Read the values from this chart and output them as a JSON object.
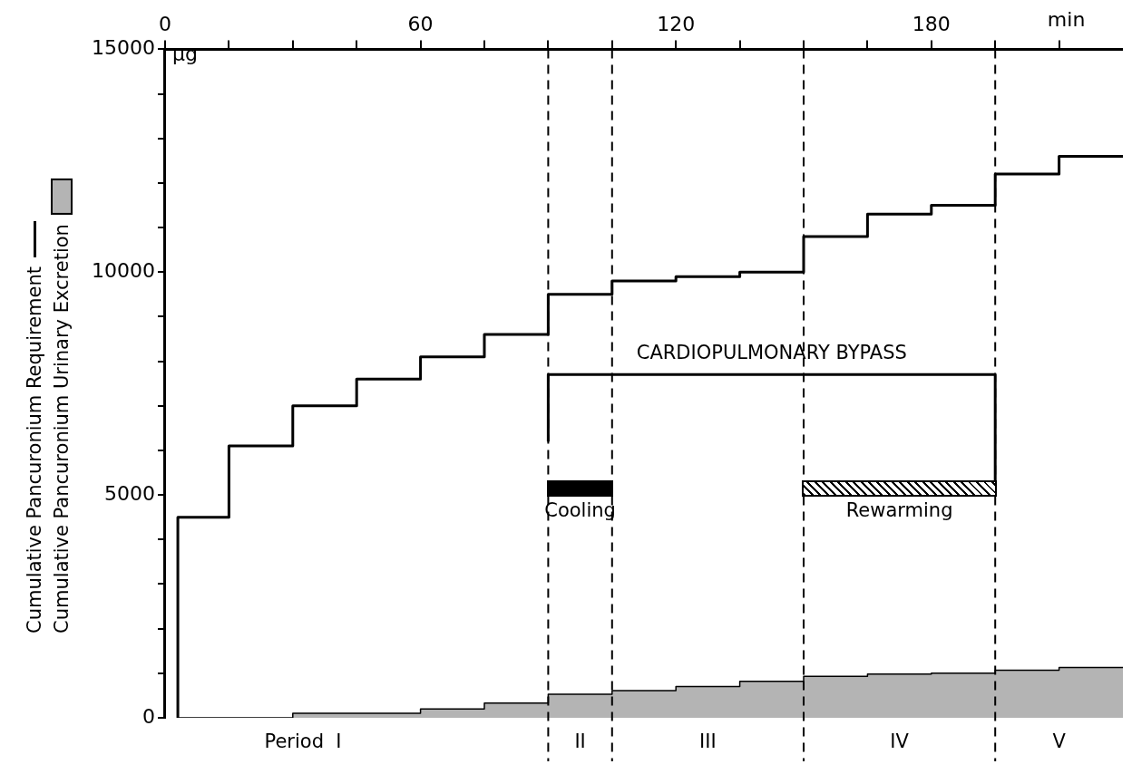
{
  "chart_data": {
    "type": "step",
    "xlabel": "min",
    "ylabel": "µg",
    "xlim": [
      0,
      225
    ],
    "xticks": [
      0,
      {
        "value": 15,
        "label": null
      },
      {
        "value": 30,
        "label": null
      },
      {
        "value": 45,
        "label": null
      },
      60,
      {
        "value": 75,
        "label": null
      },
      {
        "value": 90,
        "label": null
      },
      {
        "value": 105,
        "label": null
      },
      120,
      {
        "value": 135,
        "label": null
      },
      {
        "value": 150,
        "label": null
      },
      {
        "value": 165,
        "label": null
      },
      180,
      {
        "value": 195,
        "label": null
      },
      {
        "value": 210,
        "label": null
      }
    ],
    "ylim": [
      0,
      15000
    ],
    "yticks": [
      0,
      {
        "value": 1000,
        "label": null
      },
      {
        "value": 2000,
        "label": null
      },
      {
        "value": 3000,
        "label": null
      },
      {
        "value": 4000,
        "label": null
      },
      5000,
      {
        "value": 6000,
        "label": null
      },
      {
        "value": 7000,
        "label": null
      },
      {
        "value": 8000,
        "label": null
      },
      {
        "value": 9000,
        "label": null
      },
      10000,
      {
        "value": 11000,
        "label": null
      },
      {
        "value": 12000,
        "label": null
      },
      {
        "value": 13000,
        "label": null
      },
      {
        "value": 14000,
        "label": null
      },
      15000
    ],
    "series": [
      {
        "name": "Cumulative Pancuronium Requirement",
        "type": "step",
        "color": "#000000",
        "x": [
          3,
          3,
          15,
          30,
          45,
          60,
          75,
          90,
          105,
          120,
          135,
          150,
          165,
          180,
          195,
          210,
          225
        ],
        "values": [
          0,
          4500,
          6100,
          7000,
          7600,
          8100,
          8600,
          9500,
          9800,
          9900,
          10000,
          10800,
          11300,
          11500,
          12200,
          12600,
          12600
        ]
      },
      {
        "name": "Cumulative Pancuronium Urinary Excretion",
        "type": "area",
        "color": "#b4b4b4",
        "x": [
          3,
          30,
          60,
          75,
          90,
          105,
          120,
          135,
          150,
          165,
          180,
          195,
          210,
          225
        ],
        "values": [
          0,
          100,
          200,
          330,
          530,
          610,
          700,
          820,
          930,
          980,
          1000,
          1070,
          1130,
          1130
        ]
      },
      {
        "type": "line",
        "color": "#000000",
        "x": [
          90,
          90,
          195,
          195
        ],
        "values": [
          6200,
          7700,
          7700,
          5300
        ]
      }
    ],
    "ref_lines": [
      {
        "axis": "x",
        "value": 90,
        "line_style": "dashed"
      },
      {
        "axis": "x",
        "value": 105,
        "line_style": "dashed"
      },
      {
        "axis": "x",
        "value": 150,
        "line_style": "dashed"
      },
      {
        "axis": "x",
        "value": 195,
        "line_style": "dashed"
      }
    ],
    "annotations": [
      "CARDIOPULMONARY BYPASS",
      "Cooling",
      "Rewarming",
      "Period  I",
      "II",
      "III",
      "IV",
      "V"
    ],
    "legend": "left",
    "grid": false
  }
}
